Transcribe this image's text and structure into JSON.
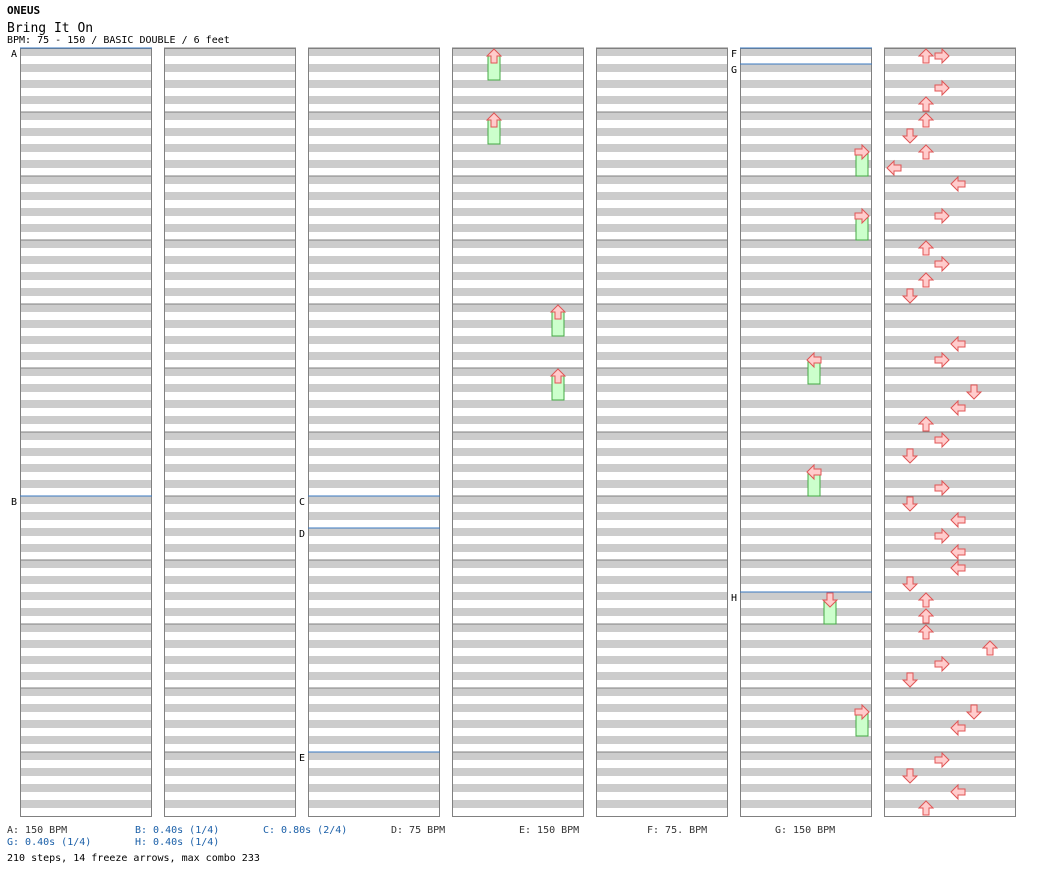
{
  "header": {
    "artist": "ONEUS",
    "title": "Bring It On",
    "meta": "BPM: 75 - 150 / BASIC DOUBLE / 6 feet"
  },
  "colors": {
    "stripe": "#cccccc",
    "border": "#808080",
    "marker": "#3a78c0",
    "note_fill": "#ffcccc",
    "note_stroke": "#e05555",
    "freeze_fill": "#ccffcc",
    "freeze_stroke": "#44aa44",
    "shock_fill": "#a8d4ff",
    "shock_stroke": "#3a7ad0",
    "legend_black": "#333333",
    "legend_blue": "#1a5fa8"
  },
  "chart_data": {
    "type": "step-chart",
    "lanes": [
      "left",
      "down",
      "up",
      "right",
      "left",
      "down",
      "up",
      "right"
    ],
    "measures_per_column": 12,
    "columns": 7,
    "markers": [
      {
        "label": "A",
        "column": 1,
        "measure": 0
      },
      {
        "label": "B",
        "column": 1,
        "measure": 7
      },
      {
        "label": "C",
        "column": 3,
        "measure": 7
      },
      {
        "label": "D",
        "column": 3,
        "measure": 7.5
      },
      {
        "label": "E",
        "column": 3,
        "measure": 11
      },
      {
        "label": "F",
        "column": 6,
        "measure": 0
      },
      {
        "label": "G",
        "column": 6,
        "measure": 0.25
      },
      {
        "label": "H",
        "column": 6,
        "measure": 8.5
      }
    ],
    "notes": [
      [
        6,
        0.0,
        2
      ],
      [
        6,
        0.0,
        3
      ],
      [
        6,
        0.5,
        3
      ],
      [
        6,
        0.75,
        2
      ],
      [
        6,
        1.0,
        2
      ],
      [
        6,
        1.25,
        1
      ],
      [
        6,
        1.5,
        2
      ],
      [
        6,
        1.75,
        0
      ],
      [
        6,
        2.0,
        4
      ],
      [
        6,
        2.5,
        3
      ],
      [
        6,
        3.0,
        2
      ],
      [
        6,
        3.25,
        3
      ],
      [
        6,
        3.5,
        2
      ],
      [
        6,
        3.75,
        1
      ],
      [
        6,
        4.5,
        4
      ],
      [
        6,
        4.75,
        3
      ],
      [
        6,
        5.25,
        5
      ],
      [
        6,
        5.5,
        4
      ],
      [
        6,
        5.75,
        2
      ],
      [
        6,
        6.0,
        3
      ],
      [
        6,
        6.25,
        1
      ],
      [
        6,
        6.75,
        3
      ],
      [
        6,
        7.0,
        1
      ],
      [
        6,
        7.25,
        4
      ],
      [
        6,
        7.5,
        3
      ],
      [
        6,
        7.75,
        4
      ],
      [
        6,
        8.0,
        4
      ],
      [
        6,
        8.25,
        1
      ],
      [
        6,
        8.5,
        2
      ],
      [
        6,
        8.75,
        2
      ],
      [
        6,
        9.0,
        2
      ],
      [
        6,
        9.25,
        6
      ],
      [
        6,
        9.5,
        3
      ],
      [
        6,
        9.75,
        1
      ],
      [
        6,
        10.25,
        5
      ],
      [
        6,
        10.5,
        4
      ],
      [
        6,
        11.0,
        3
      ],
      [
        6,
        11.25,
        1
      ],
      [
        6,
        11.5,
        4
      ],
      [
        6,
        11.75,
        2
      ]
    ],
    "freezes": [
      [
        3,
        0.0,
        2,
        0.25
      ],
      [
        3,
        1.0,
        2,
        1.25
      ],
      [
        3,
        4.0,
        6,
        4.25
      ],
      [
        3,
        5.0,
        6,
        5.25
      ],
      [
        5,
        1.5,
        7,
        1.75
      ],
      [
        5,
        2.5,
        7,
        2.75
      ],
      [
        5,
        4.75,
        4,
        5.0
      ],
      [
        5,
        6.5,
        4,
        6.75
      ],
      [
        5,
        8.5,
        5,
        8.75
      ],
      [
        5,
        10.25,
        7,
        10.5
      ]
    ],
    "legend": [
      {
        "text": "A: 150 BPM",
        "color": "black"
      },
      {
        "text": "B: 0.40s (1/4)",
        "color": "blue"
      },
      {
        "text": "C: 0.80s (2/4)",
        "color": "blue"
      },
      {
        "text": "D: 75 BPM",
        "color": "black"
      },
      {
        "text": "E: 150 BPM",
        "color": "black"
      },
      {
        "text": "F: 75. BPM",
        "color": "black"
      },
      {
        "text": "G: 150 BPM",
        "color": "black"
      },
      {
        "text": "G: 0.40s (1/4)",
        "color": "blue"
      },
      {
        "text": "H: 0.40s (1/4)",
        "color": "blue"
      }
    ]
  },
  "summary": "210 steps, 14 freeze arrows, max combo 233"
}
